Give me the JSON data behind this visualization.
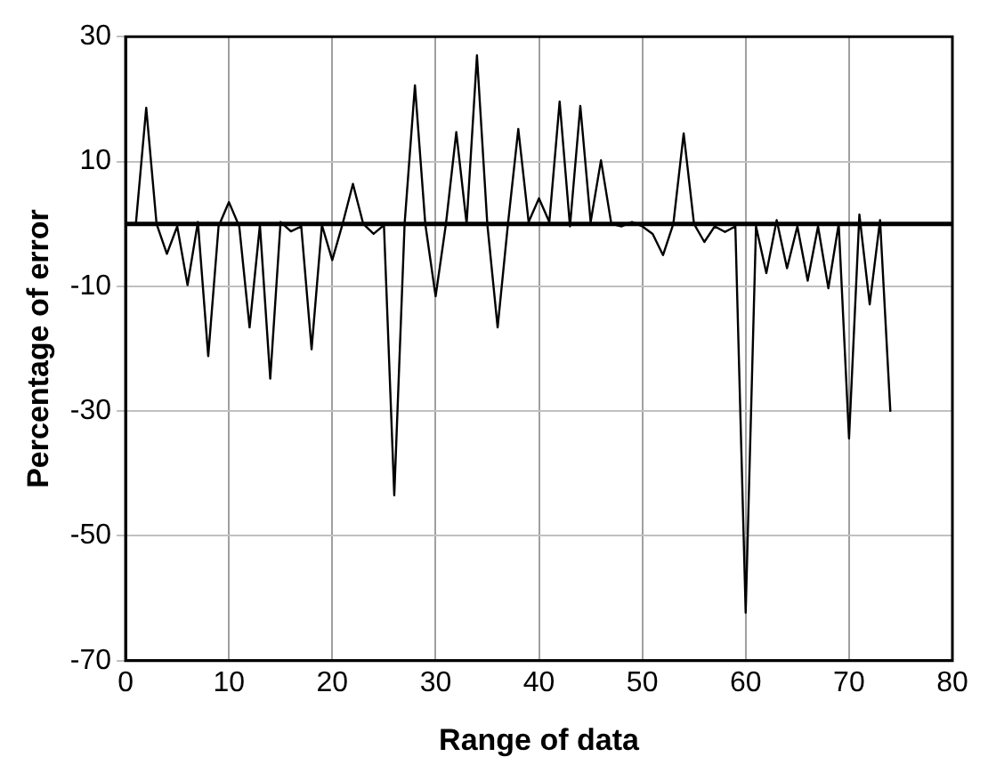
{
  "chart_data": {
    "type": "line",
    "xlabel": "Range of data",
    "ylabel": "Percentage of error",
    "x": [
      1,
      2,
      3,
      4,
      5,
      6,
      7,
      8,
      9,
      10,
      11,
      12,
      13,
      14,
      15,
      16,
      17,
      18,
      19,
      20,
      21,
      22,
      23,
      24,
      25,
      26,
      27,
      28,
      29,
      30,
      31,
      32,
      33,
      34,
      35,
      36,
      37,
      38,
      39,
      40,
      41,
      42,
      43,
      44,
      45,
      46,
      47,
      48,
      49,
      50,
      51,
      52,
      53,
      54,
      55,
      56,
      57,
      58,
      59,
      60,
      61,
      62,
      63,
      64,
      65,
      66,
      67,
      68,
      69,
      70,
      71,
      72,
      73,
      74
    ],
    "series": [
      {
        "color": "#000000",
        "values": [
          0,
          18.6,
          0,
          -4.8,
          -0.4,
          -9.8,
          0.3,
          -21.2,
          -0.4,
          3.5,
          -0.4,
          -16.6,
          -0.2,
          -24.8,
          0.3,
          -1.2,
          -0.4,
          -20.1,
          -0.2,
          -5.8,
          0,
          6.4,
          0,
          -1.6,
          -0.2,
          -43.5,
          0,
          22.2,
          0,
          -11.6,
          0,
          14.7,
          0,
          27,
          0,
          -16.6,
          0,
          15.2,
          0.3,
          4.1,
          0.3,
          19.6,
          -0.4,
          18.9,
          0.3,
          10.2,
          0,
          -0.4,
          0.3,
          -0.4,
          -1.6,
          -5,
          0,
          14.5,
          0,
          -2.9,
          -0.4,
          -1.3,
          -0.4,
          -62.3,
          -0.4,
          -7.9,
          0.6,
          -7.1,
          -0.4,
          -9.1,
          -0.4,
          -10.3,
          0,
          -34.4,
          1.5,
          -12.9,
          0.6,
          -30.1
        ]
      }
    ],
    "xlim": [
      0,
      80
    ],
    "xticks": [
      0,
      10,
      20,
      30,
      40,
      50,
      60,
      70,
      80
    ],
    "ylim": [
      -70,
      30
    ],
    "yticks": [
      -70,
      -50,
      -30,
      -10,
      10,
      30
    ],
    "ref_lines": [
      {
        "axis": "y",
        "value": 0,
        "color": "#000000"
      }
    ],
    "grid": true,
    "legend": false,
    "marker": "none",
    "line_style": "solid"
  }
}
